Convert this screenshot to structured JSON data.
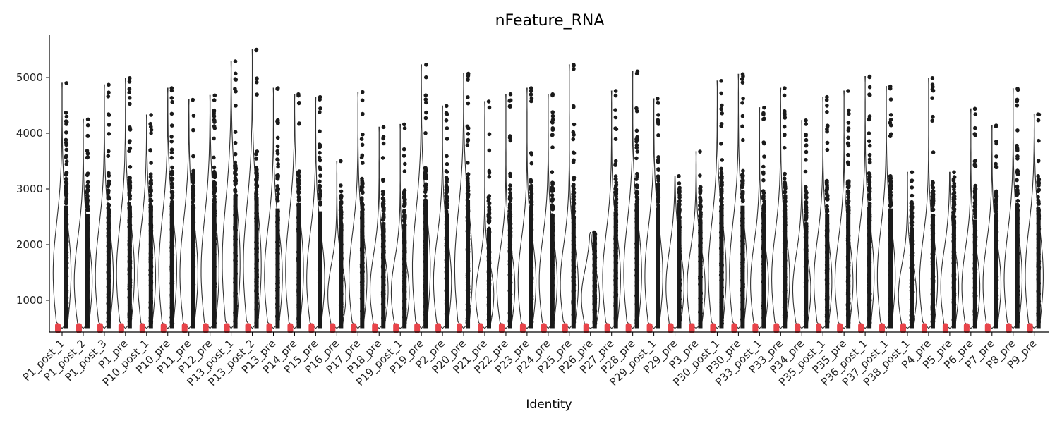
{
  "chart_data": {
    "type": "violin",
    "title": "nFeature_RNA",
    "xlabel": "Identity",
    "ylabel": "",
    "ylim": [
      430,
      5760
    ],
    "yticks": [
      1000,
      2000,
      3000,
      4000,
      5000
    ],
    "legend": "none",
    "grid": false,
    "colors": {
      "violin_outline": "#333333",
      "points": "#1a1a1a",
      "fill": "#e8444a"
    },
    "categories": [
      "P1_post_1",
      "P1_post_2",
      "P1_post_3",
      "P1_pre",
      "P10_post_1",
      "P10_pre",
      "P11_pre",
      "P12_pre",
      "P13_post_1",
      "P13_post_2",
      "P13_pre",
      "P14_pre",
      "P15_pre",
      "P16_pre",
      "P17_pre",
      "P18_pre",
      "P19_post_1",
      "P19_pre",
      "P2_pre",
      "P20_pre",
      "P21_pre",
      "P22_pre",
      "P23_pre",
      "P24_pre",
      "P25_pre",
      "P26_pre",
      "P27_pre",
      "P28_pre",
      "P29_post_1",
      "P29_pre",
      "P3_pre",
      "P30_post_1",
      "P30_pre",
      "P33_post_1",
      "P33_pre",
      "P34_pre",
      "P35_post_1",
      "P35_pre",
      "P36_post_1",
      "P37_post_1",
      "P38_post_1",
      "P4_pre",
      "P5_pre",
      "P6_pre",
      "P7_pre",
      "P8_pre",
      "P9_pre"
    ],
    "min": 500,
    "max": [
      4900,
      4250,
      4870,
      4990,
      4330,
      4810,
      4600,
      4680,
      5290,
      5500,
      4810,
      4700,
      4650,
      3500,
      4740,
      4110,
      4160,
      5230,
      4490,
      5070,
      4570,
      4700,
      4810,
      4700,
      5230,
      2220,
      4760,
      5110,
      4620,
      3230,
      3670,
      4940,
      5060,
      4460,
      4810,
      4230,
      4650,
      4760,
      5020,
      4840,
      3300,
      4990,
      3300,
      4440,
      4140,
      4800,
      4340
    ],
    "median": [
      1500,
      1350,
      1450,
      1500,
      1450,
      1550,
      1500,
      1550,
      1700,
      1650,
      1450,
      1550,
      1400,
      1100,
      1400,
      1200,
      1150,
      1600,
      1350,
      1600,
      1100,
      1250,
      1350,
      1350,
      1300,
      1050,
      1400,
      1500,
      1450,
      1250,
      1250,
      1500,
      1500,
      1300,
      1400,
      1200,
      1350,
      1350,
      1450,
      1450,
      1100,
      1350,
      1250,
      1250,
      1300,
      1400,
      1450
    ]
  }
}
